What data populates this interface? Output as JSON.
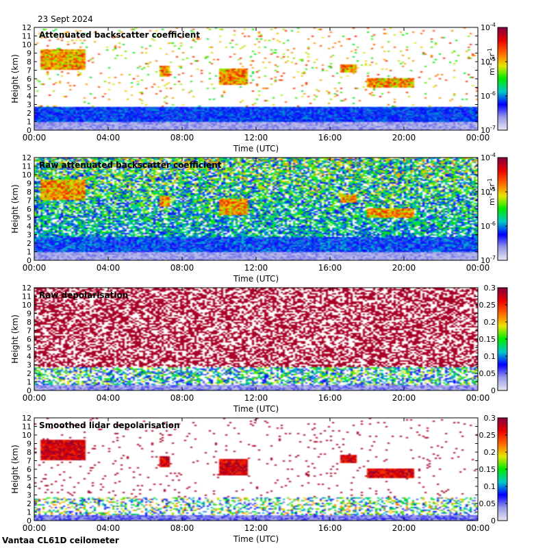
{
  "date": "23 Sept 2024",
  "instrument": "Vantaa CL61D ceilometer",
  "chart_data": [
    {
      "type": "heatmap",
      "title": "Attenuated backscatter coefficient",
      "xlabel": "Time (UTC)",
      "ylabel": "Height (km)",
      "x_ticks": [
        "00:00",
        "04:00",
        "08:00",
        "12:00",
        "16:00",
        "20:00",
        "00:00"
      ],
      "xlim_hours": [
        0,
        24
      ],
      "y_ticks": [
        "0",
        "1",
        "2",
        "3",
        "4",
        "5",
        "6",
        "7",
        "8",
        "9",
        "10",
        "11",
        "12"
      ],
      "ylim_km": [
        0,
        12
      ],
      "colorbar": {
        "scale": "log",
        "unit_base": "m",
        "unit_base_exp": "-1",
        "unit_sr": "sr",
        "unit_sr_exp": "-1",
        "ticks": [
          {
            "base": "10",
            "exp": "-7"
          },
          {
            "base": "10",
            "exp": "-6"
          },
          {
            "base": "10",
            "exp": "-5"
          },
          {
            "base": "10",
            "exp": "-4"
          }
        ],
        "range": [
          1e-07,
          0.0001
        ]
      },
      "colormap": [
        "#e6e6f2",
        "#9999e6",
        "#0000ff",
        "#00c8c8",
        "#00e600",
        "#e6e600",
        "#ff6600",
        "#e60000",
        "#800040"
      ],
      "features": {
        "boundary_layer_top_km": 2.8,
        "cloud_layer_km": 1.9,
        "high_cloud_patches": [
          {
            "t0": 0.3,
            "t1": 2.8,
            "z0": 7.0,
            "z1": 9.5
          },
          {
            "t0": 6.8,
            "t1": 7.3,
            "z0": 6.2,
            "z1": 7.5
          },
          {
            "t0": 10.0,
            "t1": 11.6,
            "z0": 5.3,
            "z1": 7.2
          },
          {
            "t0": 16.6,
            "t1": 17.4,
            "z0": 6.8,
            "z1": 7.6
          },
          {
            "t0": 18.0,
            "t1": 20.5,
            "z0": 5.0,
            "z1": 6.0
          }
        ]
      }
    },
    {
      "type": "heatmap",
      "title": "Raw attenuated backscatter coefficient",
      "xlabel": "Time (UTC)",
      "ylabel": "Height (km)",
      "x_ticks": [
        "00:00",
        "04:00",
        "08:00",
        "12:00",
        "16:00",
        "20:00",
        "00:00"
      ],
      "xlim_hours": [
        0,
        24
      ],
      "y_ticks": [
        "0",
        "1",
        "2",
        "3",
        "4",
        "5",
        "6",
        "7",
        "8",
        "9",
        "10",
        "11",
        "12"
      ],
      "ylim_km": [
        0,
        12
      ],
      "colorbar": {
        "scale": "log",
        "unit_base": "m",
        "unit_base_exp": "-1",
        "unit_sr": "sr",
        "unit_sr_exp": "-1",
        "ticks": [
          {
            "base": "10",
            "exp": "-7"
          },
          {
            "base": "10",
            "exp": "-6"
          },
          {
            "base": "10",
            "exp": "-5"
          },
          {
            "base": "10",
            "exp": "-4"
          }
        ],
        "range": [
          1e-07,
          0.0001
        ]
      },
      "colormap": [
        "#e6e6f2",
        "#9999e6",
        "#0000ff",
        "#00c8c8",
        "#00e600",
        "#e6e600",
        "#ff6600",
        "#e60000",
        "#800040"
      ]
    },
    {
      "type": "heatmap",
      "title": "Raw depolarisation",
      "xlabel": "Time (UTC)",
      "ylabel": "Height (km)",
      "x_ticks": [
        "00:00",
        "04:00",
        "08:00",
        "12:00",
        "16:00",
        "20:00",
        "00:00"
      ],
      "xlim_hours": [
        0,
        24
      ],
      "y_ticks": [
        "0",
        "1",
        "2",
        "3",
        "4",
        "5",
        "6",
        "7",
        "8",
        "9",
        "10",
        "11",
        "12"
      ],
      "ylim_km": [
        0,
        12
      ],
      "colorbar": {
        "scale": "linear",
        "ticks": [
          "0",
          "0.05",
          "0.1",
          "0.15",
          "0.2",
          "0.25",
          "0.3"
        ],
        "range": [
          0,
          0.3
        ]
      },
      "colormap": [
        "#e6e6f2",
        "#9999e6",
        "#0000ff",
        "#00c8c8",
        "#00e600",
        "#e6e600",
        "#ff6600",
        "#e60000",
        "#800040"
      ]
    },
    {
      "type": "heatmap",
      "title": "Smoothed lidar depolarisation",
      "xlabel": "Time (UTC)",
      "ylabel": "Height (km)",
      "x_ticks": [
        "00:00",
        "04:00",
        "08:00",
        "12:00",
        "16:00",
        "20:00",
        "00:00"
      ],
      "xlim_hours": [
        0,
        24
      ],
      "y_ticks": [
        "0",
        "1",
        "2",
        "3",
        "4",
        "5",
        "6",
        "7",
        "8",
        "9",
        "10",
        "11",
        "12"
      ],
      "ylim_km": [
        0,
        12
      ],
      "colorbar": {
        "scale": "linear",
        "ticks": [
          "0",
          "0.05",
          "0.1",
          "0.15",
          "0.2",
          "0.25",
          "0.3"
        ],
        "range": [
          0,
          0.3
        ]
      },
      "colormap": [
        "#e6e6f2",
        "#9999e6",
        "#0000ff",
        "#00c8c8",
        "#00e600",
        "#e6e600",
        "#ff6600",
        "#e60000",
        "#800040"
      ]
    }
  ]
}
